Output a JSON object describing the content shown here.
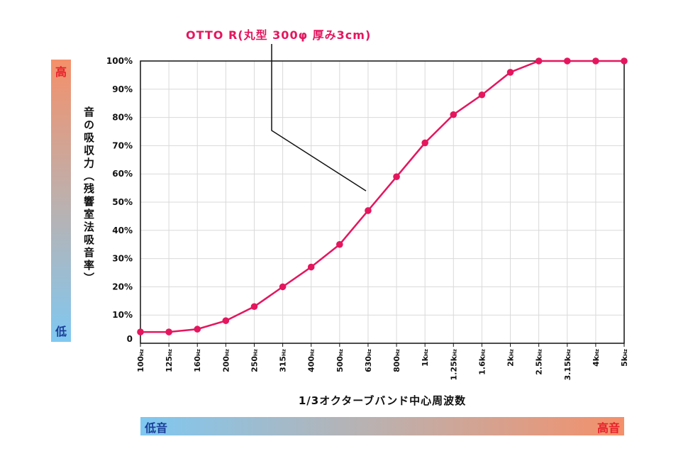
{
  "chart_data": {
    "type": "line",
    "title": "",
    "xlabel": "1/3オクターブバンド中心周波数",
    "ylabel": "音の吸収力（残響室法吸音率）",
    "x_ticks": [
      {
        "main": "100",
        "unit": "Hz"
      },
      {
        "main": "125",
        "unit": "Hz"
      },
      {
        "main": "160",
        "unit": "Hz"
      },
      {
        "main": "200",
        "unit": "Hz"
      },
      {
        "main": "250",
        "unit": "Hz"
      },
      {
        "main": "315",
        "unit": "Hz"
      },
      {
        "main": "400",
        "unit": "Hz"
      },
      {
        "main": "500",
        "unit": "Hz"
      },
      {
        "main": "630",
        "unit": "Hz"
      },
      {
        "main": "800",
        "unit": "Hz"
      },
      {
        "main": "1k",
        "unit": "Hz"
      },
      {
        "main": "1.25k",
        "unit": "Hz"
      },
      {
        "main": "1.6k",
        "unit": "Hz"
      },
      {
        "main": "2k",
        "unit": "Hz"
      },
      {
        "main": "2.5k",
        "unit": "Hz"
      },
      {
        "main": "3.15k",
        "unit": "Hz"
      },
      {
        "main": "4k",
        "unit": "Hz"
      },
      {
        "main": "5k",
        "unit": "Hz"
      }
    ],
    "y_ticks": [
      "0",
      "10%",
      "20%",
      "30%",
      "40%",
      "50%",
      "60%",
      "70%",
      "80%",
      "90%",
      "100%"
    ],
    "ylim": [
      0,
      100
    ],
    "grid": true,
    "series": [
      {
        "name": "OTTO R(丸型 300φ 厚み3cm)",
        "color": "#e4165e",
        "values": [
          4,
          4,
          5,
          8,
          13,
          20,
          27,
          35,
          47,
          59,
          71,
          81,
          88,
          96,
          100,
          100,
          100,
          100
        ]
      }
    ]
  },
  "left_scale": {
    "high": "高",
    "low": "低"
  },
  "bottom_scale": {
    "low": "低音",
    "high": "高音"
  },
  "colors": {
    "series": "#e4165e",
    "high": "#e8202a",
    "low": "#1b3f9a",
    "grid": "#d9d9d9",
    "axis": "#111111"
  }
}
